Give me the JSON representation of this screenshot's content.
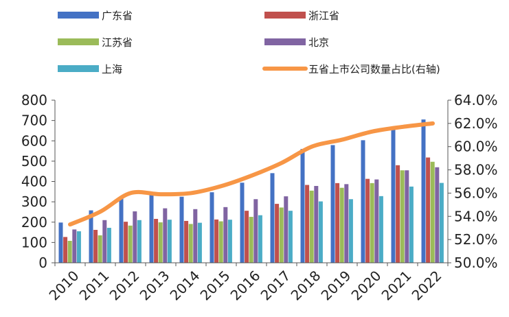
{
  "chart_data": {
    "type": "bar",
    "title": "",
    "xlabel": "",
    "ylabel": "",
    "categories": [
      "2010",
      "2011",
      "2012",
      "2013",
      "2014",
      "2015",
      "2016",
      "2017",
      "2018",
      "2019",
      "2020",
      "2021",
      "2022"
    ],
    "ylim": [
      0,
      800
    ],
    "yticks": [
      "0",
      "100",
      "200",
      "300",
      "400",
      "500",
      "600",
      "700",
      "800"
    ],
    "y2lim": [
      50,
      64
    ],
    "y2ticks": [
      "50.0%",
      "52.0%",
      "54.0%",
      "56.0%",
      "58.0%",
      "60.0%",
      "62.0%",
      "64.0%"
    ],
    "grid": false,
    "legend_position": "top",
    "series": [
      {
        "name": "广东省",
        "type": "bar",
        "color": "#4472C4",
        "values": [
          198,
          258,
          317,
          334,
          325,
          347,
          394,
          441,
          560,
          579,
          603,
          655,
          705
        ]
      },
      {
        "name": "浙江省",
        "type": "bar",
        "color": "#C0504D",
        "values": [
          127,
          162,
          202,
          216,
          206,
          213,
          256,
          290,
          383,
          392,
          413,
          480,
          518
        ]
      },
      {
        "name": "江苏省",
        "type": "bar",
        "color": "#9BBB59",
        "values": [
          108,
          135,
          183,
          199,
          191,
          204,
          226,
          272,
          355,
          369,
          392,
          455,
          497
        ]
      },
      {
        "name": "北京",
        "type": "bar",
        "color": "#8064A2",
        "values": [
          164,
          210,
          253,
          268,
          264,
          274,
          313,
          327,
          378,
          387,
          410,
          455,
          470
        ]
      },
      {
        "name": "上海",
        "type": "bar",
        "color": "#4BACC6",
        "values": [
          155,
          172,
          210,
          212,
          197,
          212,
          234,
          256,
          302,
          313,
          328,
          375,
          393
        ]
      },
      {
        "name": "五省上市公司数量占比(右轴)",
        "type": "line",
        "axis": "right",
        "color": "#F79646",
        "values": [
          53.3,
          54.4,
          56.0,
          55.9,
          56.0,
          56.6,
          57.5,
          58.6,
          60.0,
          60.6,
          61.3,
          61.7,
          62.0
        ]
      }
    ]
  }
}
